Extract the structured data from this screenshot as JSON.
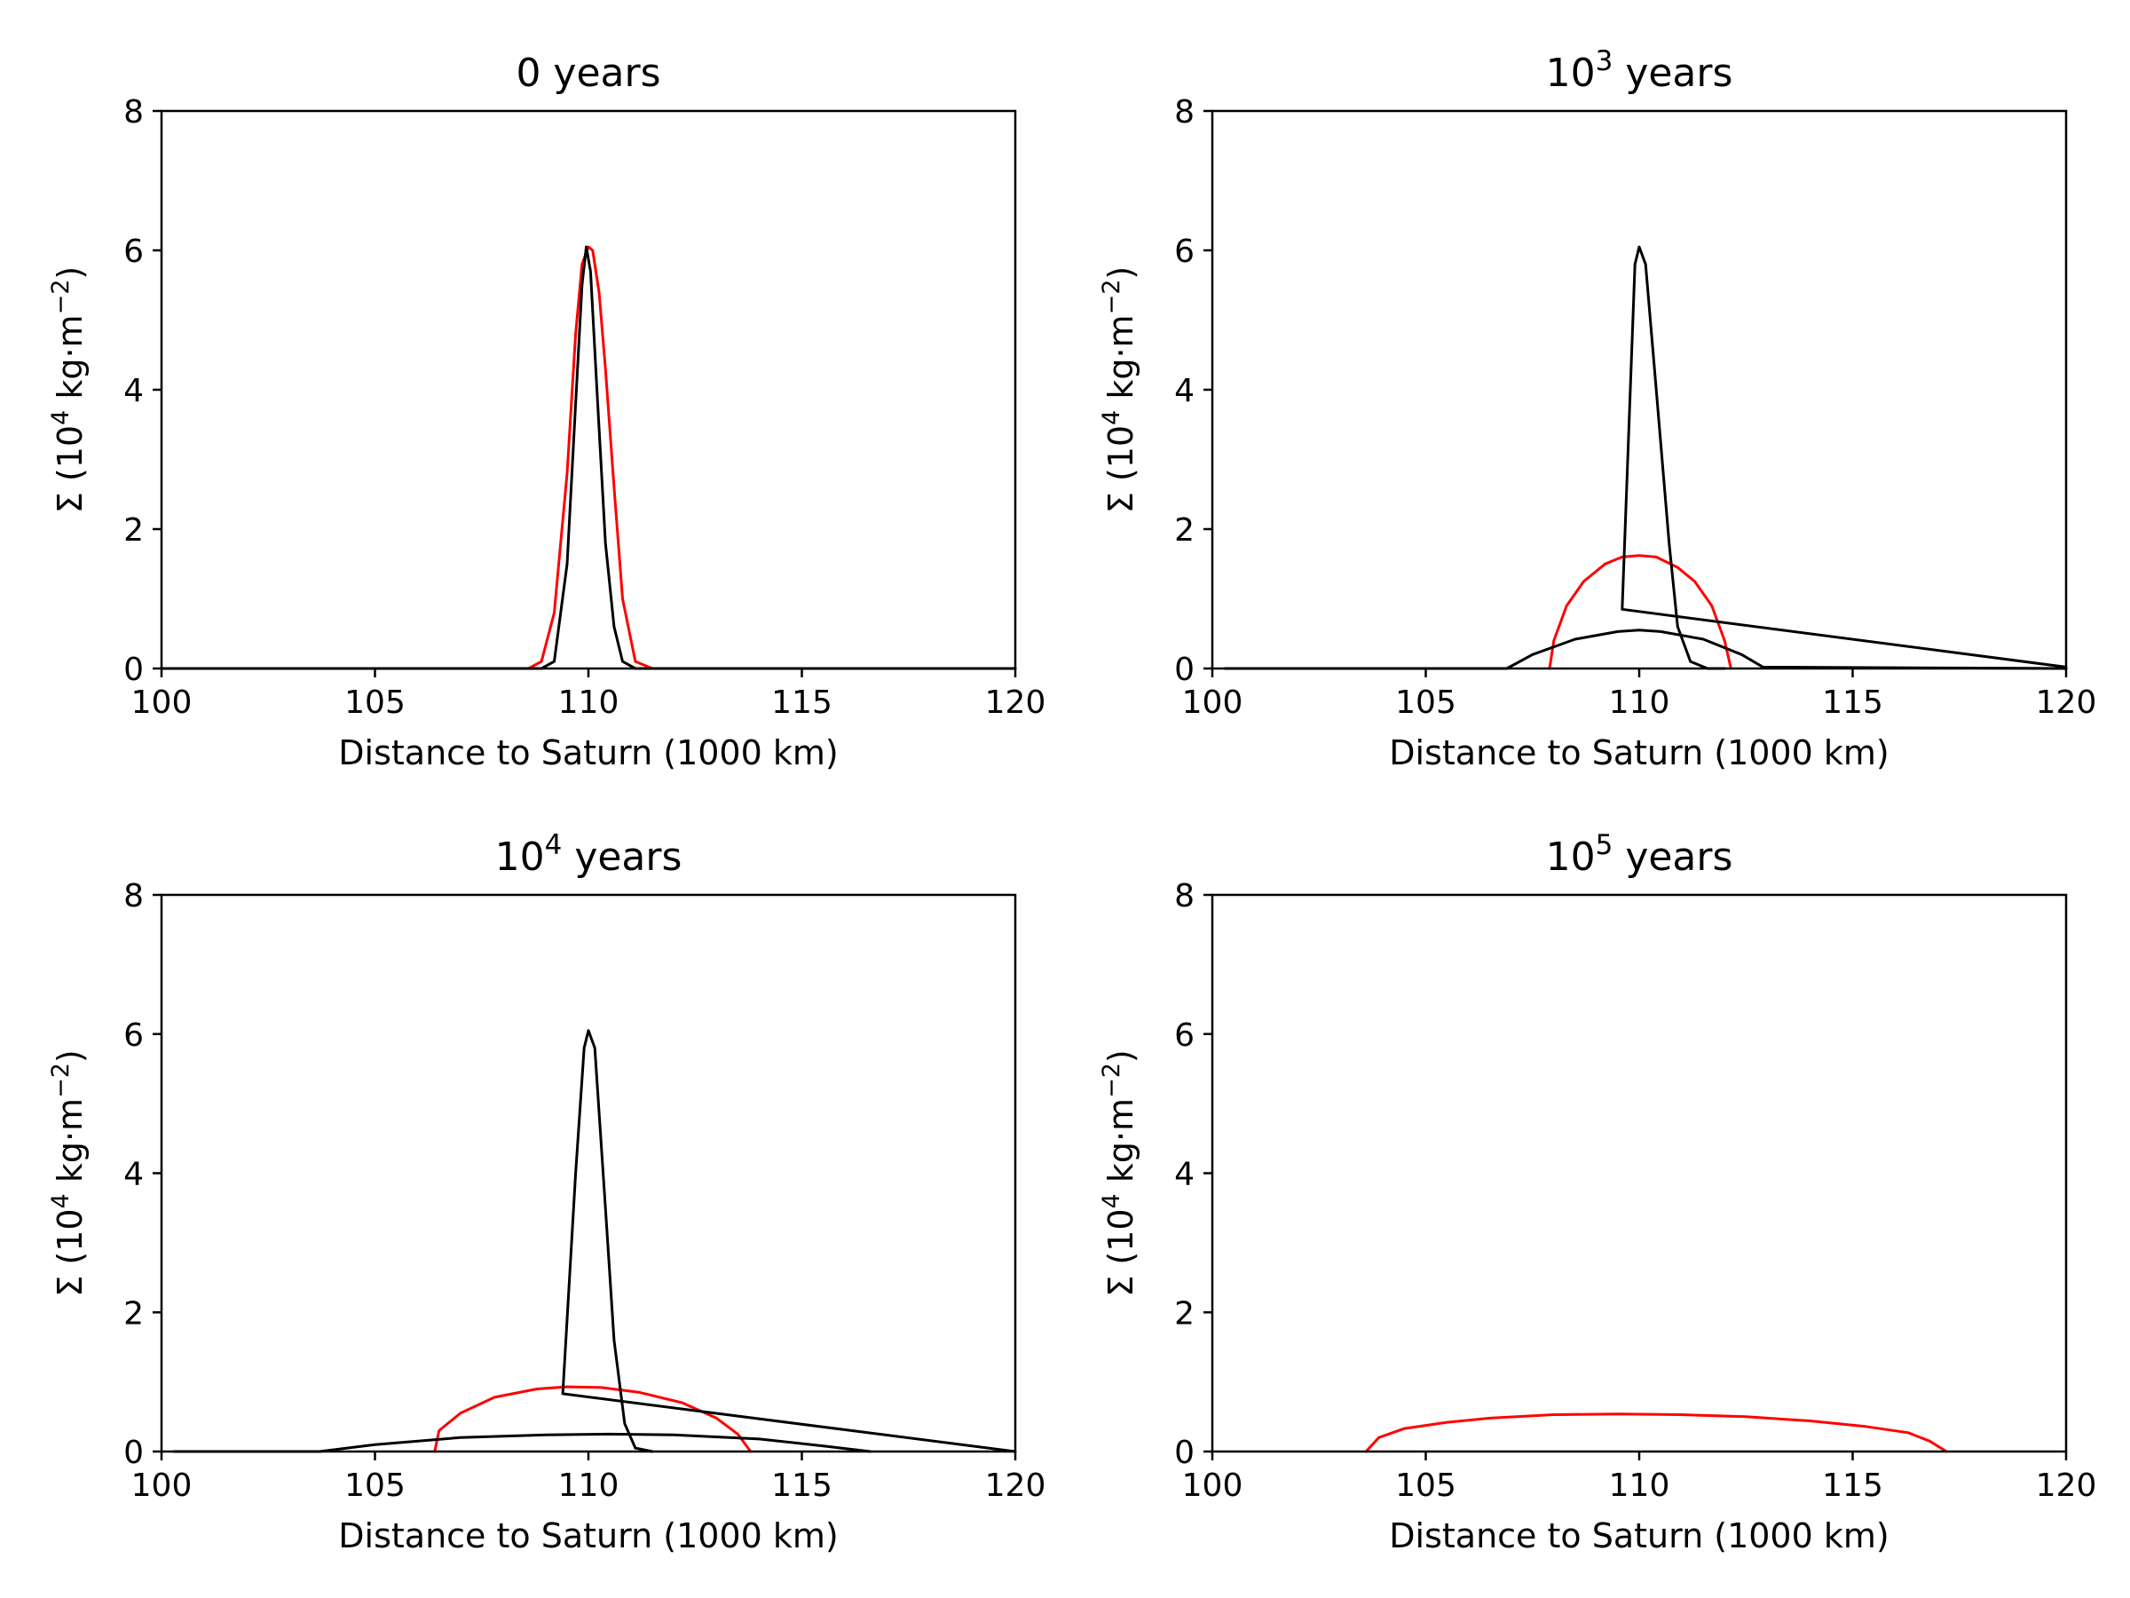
{
  "chart_data": [
    {
      "type": "line",
      "title": "0 years",
      "xlabel": "Distance to Saturn (1000 km)",
      "ylabel": "Σ (10⁴ kg·m⁻²)",
      "xlim": [
        100,
        120
      ],
      "ylim": [
        0,
        8
      ],
      "xticks": [
        100,
        105,
        110,
        115,
        120
      ],
      "yticks": [
        0,
        2,
        4,
        6,
        8
      ],
      "grid": false,
      "series": [
        {
          "color": "#ff0000",
          "x": [
            100,
            108.6,
            108.9,
            109.2,
            109.5,
            109.7,
            109.85,
            110.0,
            110.1,
            110.25,
            110.4,
            110.6,
            110.8,
            111.1,
            111.5,
            120
          ],
          "y": [
            0,
            0,
            0.1,
            0.8,
            2.8,
            4.8,
            5.8,
            6.05,
            6.0,
            5.4,
            4.3,
            2.6,
            1.0,
            0.1,
            0,
            0
          ]
        },
        {
          "color": "#000000",
          "x": [
            100,
            108.9,
            109.2,
            109.5,
            109.7,
            109.85,
            109.95,
            110.05,
            110.2,
            110.4,
            110.6,
            110.8,
            111.1,
            120
          ],
          "y": [
            0,
            0,
            0.1,
            1.5,
            3.8,
            5.5,
            6.05,
            5.7,
            4.0,
            1.8,
            0.6,
            0.1,
            0,
            0
          ]
        }
      ]
    },
    {
      "type": "line",
      "title": "10³ years",
      "xlabel": "Distance to Saturn (1000 km)",
      "ylabel": "Σ (10⁴ kg·m⁻²)",
      "xlim": [
        100,
        120
      ],
      "ylim": [
        0,
        8
      ],
      "xticks": [
        100,
        105,
        110,
        115,
        120
      ],
      "yticks": [
        0,
        2,
        4,
        6,
        8
      ],
      "grid": false,
      "series": [
        {
          "color": "#ff0000",
          "x": [
            107.9,
            108.0,
            108.3,
            108.7,
            109.2,
            109.6,
            110.0,
            110.4,
            110.9,
            111.3,
            111.7,
            112.0,
            112.15
          ],
          "y": [
            0,
            0.4,
            0.9,
            1.25,
            1.5,
            1.6,
            1.62,
            1.6,
            1.45,
            1.25,
            0.9,
            0.4,
            0
          ]
        },
        {
          "color": "#000000",
          "x": [
            100.3,
            106.9,
            107.5,
            108.5,
            109.5,
            110.0,
            110.5,
            111.5,
            112.4,
            112.9,
            120
          ],
          "y": [
            0,
            0,
            0.2,
            0.42,
            0.53,
            0.55,
            0.53,
            0.42,
            0.2,
            0.02,
            0
          ]
        },
        {
          "color": "#000000",
          "x": [
            120,
            109.6,
            109.9,
            110.0,
            110.15,
            110.4,
            110.7,
            110.9,
            111.2,
            111.6,
            112.0
          ],
          "y": [
            0.02,
            0.85,
            5.8,
            6.05,
            5.8,
            4.0,
            1.8,
            0.6,
            0.1,
            0,
            0
          ]
        }
      ]
    },
    {
      "type": "line",
      "title": "10⁴ years",
      "xlabel": "Distance to Saturn (1000 km)",
      "ylabel": "Σ (10⁴ kg·m⁻²)",
      "xlim": [
        100,
        120
      ],
      "ylim": [
        0,
        8
      ],
      "xticks": [
        100,
        105,
        110,
        115,
        120
      ],
      "yticks": [
        0,
        2,
        4,
        6,
        8
      ],
      "grid": false,
      "series": [
        {
          "color": "#ff0000",
          "x": [
            106.4,
            106.5,
            107.0,
            107.8,
            108.8,
            109.5,
            110.3,
            111.2,
            112.2,
            113.0,
            113.5,
            113.8
          ],
          "y": [
            0,
            0.3,
            0.55,
            0.78,
            0.9,
            0.93,
            0.92,
            0.85,
            0.7,
            0.48,
            0.25,
            0
          ]
        },
        {
          "color": "#000000",
          "x": [
            100.3,
            103.7,
            105.0,
            107.0,
            109.0,
            110.5,
            112.0,
            114.0,
            115.5,
            116.6
          ],
          "y": [
            0,
            0,
            0.1,
            0.2,
            0.24,
            0.25,
            0.24,
            0.18,
            0.08,
            0
          ]
        },
        {
          "color": "#000000",
          "x": [
            120,
            109.4,
            109.7,
            109.9,
            110.0,
            110.15,
            110.4,
            110.6,
            110.85,
            111.1,
            111.5
          ],
          "y": [
            0,
            0.83,
            4.0,
            5.8,
            6.05,
            5.8,
            3.5,
            1.6,
            0.4,
            0.05,
            0
          ]
        }
      ]
    },
    {
      "type": "line",
      "title": "10⁵ years",
      "xlabel": "Distance to Saturn (1000 km)",
      "ylabel": "Σ (10⁴ kg·m⁻²)",
      "xlim": [
        100,
        120
      ],
      "ylim": [
        0,
        8
      ],
      "xticks": [
        100,
        105,
        110,
        115,
        120
      ],
      "yticks": [
        0,
        2,
        4,
        6,
        8
      ],
      "grid": false,
      "series": [
        {
          "color": "#ff0000",
          "x": [
            103.6,
            103.9,
            104.5,
            105.5,
            106.5,
            108.0,
            109.5,
            111.0,
            112.5,
            114.0,
            115.3,
            116.3,
            116.8,
            117.2
          ],
          "y": [
            0,
            0.2,
            0.33,
            0.42,
            0.48,
            0.53,
            0.54,
            0.53,
            0.5,
            0.44,
            0.36,
            0.27,
            0.15,
            0
          ]
        }
      ]
    }
  ]
}
